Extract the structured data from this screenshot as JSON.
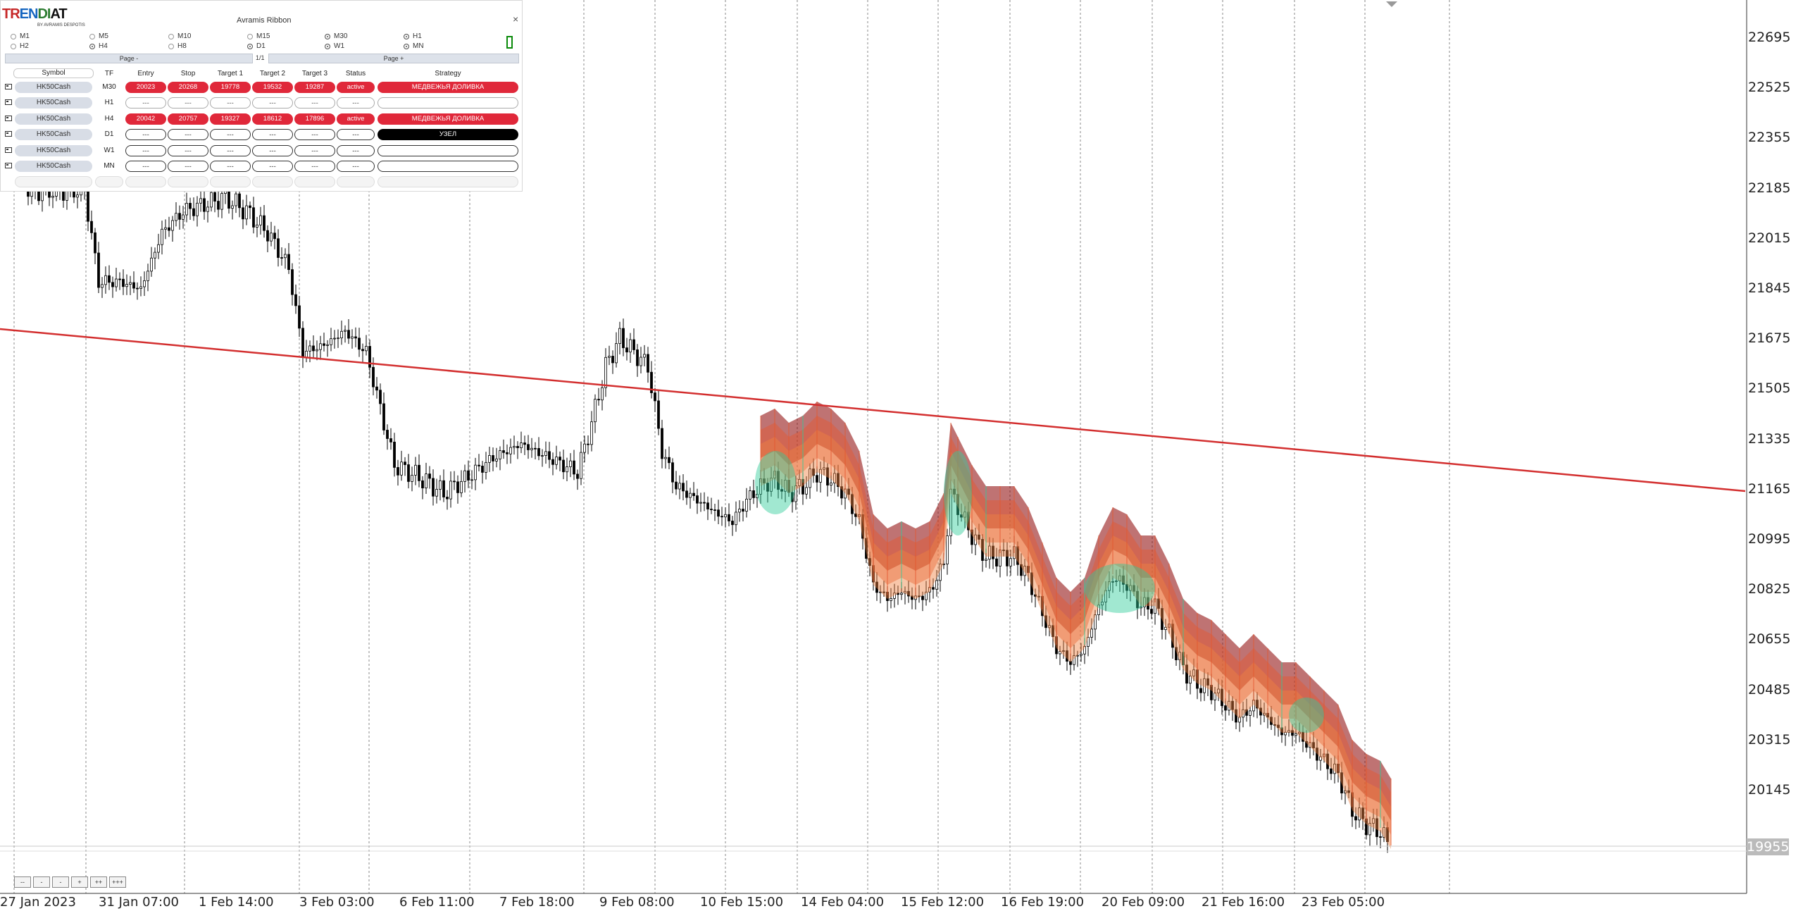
{
  "chart": {
    "price_labels": [
      "22695",
      "22525",
      "22355",
      "22185",
      "22015",
      "21845",
      "21675",
      "21505",
      "21335",
      "21165",
      "20995",
      "20825",
      "20655",
      "20485",
      "20315",
      "20145"
    ],
    "current_price": "19955",
    "date_labels": [
      "27 Jan 2023",
      "31 Jan 07:00",
      "1 Feb 14:00",
      "3 Feb 03:00",
      "6 Feb 11:00",
      "7 Feb 18:00",
      "9 Feb 08:00",
      "10 Feb 15:00",
      "14 Feb 04:00",
      "15 Feb 12:00",
      "16 Feb 19:00",
      "20 Feb 09:00",
      "21 Feb 16:00",
      "23 Feb 05:00"
    ],
    "trendline_color": "#d32f2f",
    "ribbon_colors": [
      "#8b0000",
      "#e4572e",
      "#f08040",
      "#2ecc9a",
      "#2e8b57"
    ]
  },
  "scroll_buttons": [
    "--",
    "-",
    "-",
    "+",
    "++",
    "+++"
  ],
  "panel": {
    "logo": {
      "part1": "TR",
      "part2": "EN",
      "part3": "DI",
      "part4": "AT",
      "part5": "DIAT",
      "subtitle": "BY AVRAMIS DESPOTIS"
    },
    "title": "Avramis Ribbon",
    "close": "×",
    "timeframes": [
      {
        "label": "M1",
        "selected": false
      },
      {
        "label": "M5",
        "selected": false
      },
      {
        "label": "M10",
        "selected": false
      },
      {
        "label": "M15",
        "selected": false
      },
      {
        "label": "M30",
        "selected": true
      },
      {
        "label": "H1",
        "selected": true
      },
      {
        "label": "H2",
        "selected": false
      },
      {
        "label": "H4",
        "selected": true
      },
      {
        "label": "H8",
        "selected": false
      },
      {
        "label": "D1",
        "selected": true
      },
      {
        "label": "W1",
        "selected": true
      },
      {
        "label": "MN",
        "selected": true
      }
    ],
    "page_prev": "Page -",
    "page_num": "1/1",
    "page_next": "Page +",
    "headers": {
      "symbol": "Symbol",
      "tf": "TF",
      "entry": "Entry",
      "stop": "Stop",
      "t1": "Target 1",
      "t2": "Target 2",
      "t3": "Target 3",
      "status": "Status",
      "strategy": "Strategy"
    },
    "rows": [
      {
        "symbol": "HK50Cash",
        "tf": "M30",
        "entry": "20023",
        "stop": "20268",
        "t1": "19778",
        "t2": "19532",
        "t3": "19287",
        "status": "active",
        "strategy": "МЕДВЕЖЬЯ ДОЛИВКА",
        "style": "red"
      },
      {
        "symbol": "HK50Cash",
        "tf": "H1",
        "entry": "---",
        "stop": "---",
        "t1": "---",
        "t2": "---",
        "t3": "---",
        "status": "---",
        "strategy": "",
        "style": "light"
      },
      {
        "symbol": "HK50Cash",
        "tf": "H4",
        "entry": "20042",
        "stop": "20757",
        "t1": "19327",
        "t2": "18612",
        "t3": "17896",
        "status": "active",
        "strategy": "МЕДВЕЖЬЯ ДОЛИВКА",
        "style": "red"
      },
      {
        "symbol": "HK50Cash",
        "tf": "D1",
        "entry": "---",
        "stop": "---",
        "t1": "---",
        "t2": "---",
        "t3": "---",
        "status": "---",
        "strategy": "УЗЕЛ",
        "style": "black"
      },
      {
        "symbol": "HK50Cash",
        "tf": "W1",
        "entry": "---",
        "stop": "---",
        "t1": "---",
        "t2": "---",
        "t3": "---",
        "status": "---",
        "strategy": "",
        "style": "empty"
      },
      {
        "symbol": "HK50Cash",
        "tf": "MN",
        "entry": "---",
        "stop": "---",
        "t1": "---",
        "t2": "---",
        "t3": "---",
        "status": "---",
        "strategy": "",
        "style": "empty"
      }
    ]
  }
}
